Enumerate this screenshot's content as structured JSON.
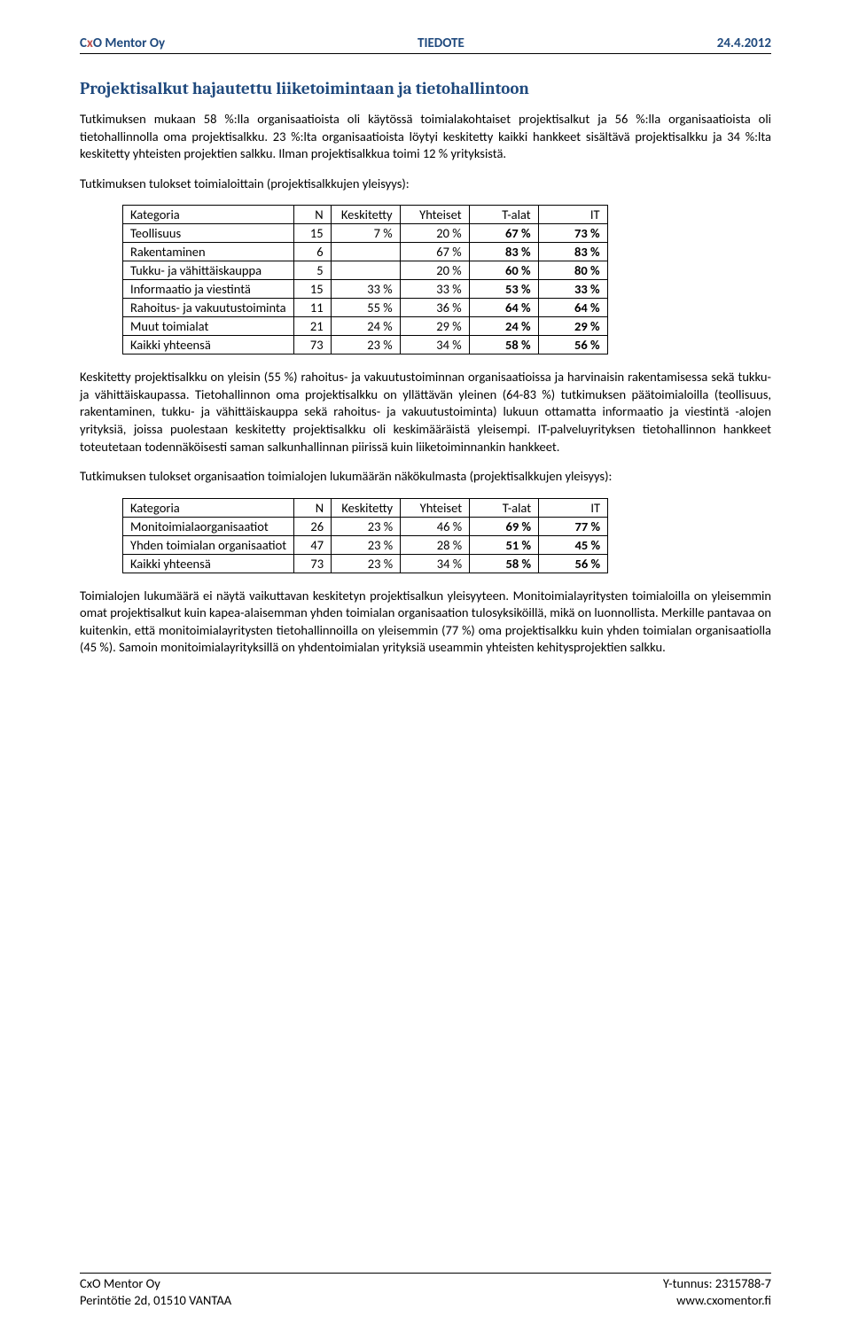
{
  "header": {
    "company_c": "C",
    "company_x": "x",
    "company_o": "O",
    "company_rest": " Mentor Oy",
    "center": "TIEDOTE",
    "date": "24.4.2012"
  },
  "title": "Projektisalkut hajautettu liiketoimintaan ja tietohallintoon",
  "para1": "Tutkimuksen mukaan 58 %:lla organisaatioista oli käytössä toimialakohtaiset projektisalkut ja 56 %:lla organisaatioista oli tietohallinnolla oma projektisalkku. 23 %:lta organisaatioista löytyi keskitetty kaikki hankkeet sisältävä projektisalkku ja 34 %:lta keskitetty yhteisten projektien salkku. Ilman projektisalkkua toimi 12 % yrityksistä.",
  "para2": "Tutkimuksen tulokset toimialoittain (projektisalkkujen yleisyys):",
  "table1": {
    "columns": [
      "Kategoria",
      "N",
      "Keskitetty",
      "Yhteiset",
      "T-alat",
      "IT"
    ],
    "rows": [
      [
        "Teollisuus",
        "15",
        "7 %",
        "20 %",
        "67 %",
        "73 %"
      ],
      [
        "Rakentaminen",
        "6",
        "",
        "67 %",
        "83 %",
        "83 %"
      ],
      [
        "Tukku- ja vähittäiskauppa",
        "5",
        "",
        "20 %",
        "60 %",
        "80 %"
      ],
      [
        "Informaatio ja viestintä",
        "15",
        "33 %",
        "33 %",
        "53 %",
        "33 %"
      ],
      [
        "Rahoitus- ja vakuutustoiminta",
        "11",
        "55 %",
        "36 %",
        "64 %",
        "64 %"
      ],
      [
        "Muut toimialat",
        "21",
        "24 %",
        "29 %",
        "24 %",
        "29 %"
      ],
      [
        "Kaikki yhteensä",
        "73",
        "23 %",
        "34 %",
        "58 %",
        "56 %"
      ]
    ]
  },
  "para3": "Keskitetty projektisalkku on yleisin (55 %) rahoitus- ja vakuutustoiminnan organisaatioissa ja harvinaisin rakentamisessa sekä tukku- ja vähittäiskaupassa. Tietohallinnon oma projektisalkku on yllättävän yleinen (64-83 %) tutkimuksen päätoimialoilla (teollisuus, rakentaminen, tukku- ja vähittäiskauppa sekä rahoitus- ja vakuutustoiminta) lukuun ottamatta informaatio ja viestintä -alojen yrityksiä, joissa puolestaan keskitetty projektisalkku oli keskimääräistä yleisempi. IT-palveluyrityksen tietohallinnon hankkeet toteutetaan todennäköisesti saman salkunhallinnan piirissä kuin liiketoiminnankin hankkeet.",
  "para4": "Tutkimuksen tulokset organisaation toimialojen lukumäärän näkökulmasta (projektisalkkujen yleisyys):",
  "table2": {
    "columns": [
      "Kategoria",
      "N",
      "Keskitetty",
      "Yhteiset",
      "T-alat",
      "IT"
    ],
    "rows": [
      [
        "Monitoimialaorganisaatiot",
        "26",
        "23 %",
        "46 %",
        "69 %",
        "77 %"
      ],
      [
        "Yhden toimialan organisaatiot",
        "47",
        "23 %",
        "28 %",
        "51 %",
        "45 %"
      ],
      [
        "Kaikki yhteensä",
        "73",
        "23 %",
        "34 %",
        "58 %",
        "56 %"
      ]
    ]
  },
  "para5": "Toimialojen lukumäärä ei näytä vaikuttavan keskitetyn projektisalkun yleisyyteen. Monitoimialayritysten toimialoilla on yleisemmin omat projektisalkut kuin kapea-alaisemman yhden toimialan organisaation tulosyksiköillä, mikä on luonnollista. Merkille pantavaa on kuitenkin, että monitoimialayritysten tietohallinnoilla on yleisemmin (77 %) oma projektisalkku kuin yhden toimialan organisaatiolla (45 %). Samoin monitoimialayrityksillä on yhdentoimialan yrityksiä useammin yhteisten kehitysprojektien salkku.",
  "footer": {
    "left1": "CxO Mentor Oy",
    "left2": "Perintötie 2d, 01510 VANTAA",
    "right1": "Y-tunnus: 2315788-7",
    "right2": "www.cxomentor.fi"
  }
}
